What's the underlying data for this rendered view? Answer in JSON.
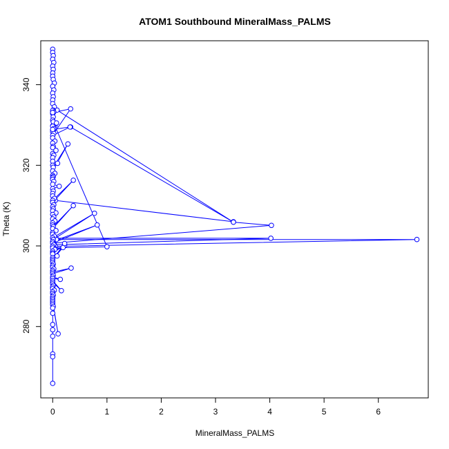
{
  "chart_data": {
    "type": "scatter",
    "title": "ATOM1 Southbound MineralMass_PALMS",
    "xlabel": "MineralMass_PALMS",
    "ylabel": "Theta (K)",
    "xlim": [
      -0.22,
      6.92
    ],
    "ylim": [
      262.3,
      350.9
    ],
    "x_ticks": [
      0,
      1,
      2,
      3,
      4,
      5,
      6
    ],
    "y_ticks": [
      280,
      300,
      320,
      340
    ],
    "grid": false,
    "line_style": "points connected by lines",
    "series_color": "#0000ff",
    "series": [
      {
        "x": [
          0.0,
          0.0,
          0.01,
          0.0,
          0.02,
          0.0,
          0.01,
          0.0,
          0.0,
          0.01,
          0.03,
          0.0,
          0.02,
          0.0,
          0.01,
          0.0,
          0.0,
          0.03,
          0.01,
          0.0,
          0.02,
          0.0,
          0.01,
          0.0,
          0.06,
          0.0,
          0.01,
          0.0,
          0.0,
          0.02,
          0.33,
          0.0,
          0.01,
          0.07,
          0.0,
          0.02,
          0.0,
          0.32,
          0.0,
          0.0,
          0.04,
          0.0,
          0.01,
          0.0,
          0.06,
          0.0,
          0.02,
          0.0,
          0.0,
          0.09,
          0.0,
          0.01,
          0.28,
          0.0,
          0.04,
          0.0,
          0.01,
          0.0,
          0.0,
          0.02,
          0.0,
          0.12,
          0.0,
          0.01,
          0.0,
          0.0,
          0.03,
          0.0,
          0.38,
          0.0,
          0.02,
          0.0,
          0.01,
          0.0,
          0.06,
          0.0,
          0.02,
          0.0,
          0.04,
          0.0,
          0.0,
          0.01,
          0.38,
          0.0,
          0.06,
          0.0,
          0.0,
          0.03,
          0.0,
          0.77,
          0.01,
          0.0,
          0.82,
          0.0,
          0.02,
          0.0,
          0.0,
          0.04,
          0.0,
          0.22,
          0.0,
          0.0,
          0.08,
          0.0,
          0.19,
          0.0,
          0.22,
          0.0,
          0.0,
          0.01,
          0.0,
          0.0,
          0.02,
          0.0,
          0.0,
          0.34,
          0.0,
          0.01,
          0.0,
          0.14,
          0.0,
          0.0,
          0.16,
          0.0,
          0.0,
          0.01,
          0.0,
          0.0,
          0.03,
          0.0,
          0.0,
          0.01,
          0.0,
          0.0,
          0.0,
          0.0,
          0.1,
          0.0,
          0.0,
          0.01,
          0.0,
          0.0,
          0.0,
          0.0,
          0.0,
          0.0,
          0.0,
          0.0
        ],
        "y": [
          348.8,
          348.0,
          347.2,
          346.3,
          345.5,
          344.6,
          343.8,
          342.9,
          342.1,
          341.3,
          340.4,
          339.6,
          338.7,
          337.9,
          337.0,
          336.2,
          335.3,
          334.5,
          333.7,
          333.6,
          333.2,
          332.8,
          332.0,
          331.2,
          330.4,
          329.8,
          329.5,
          328.7,
          328.3,
          327.9,
          334.0,
          333.1,
          330.8,
          330.5,
          329.7,
          329.1,
          328.9,
          329.5,
          327.4,
          326.8,
          326.0,
          325.5,
          324.7,
          324.4,
          323.7,
          322.9,
          322.5,
          321.9,
          321.0,
          320.5,
          320.0,
          319.5,
          325.3,
          318.6,
          318.0,
          317.5,
          317.2,
          316.9,
          316.5,
          316.0,
          315.3,
          314.8,
          314.2,
          313.6,
          313.0,
          312.4,
          311.8,
          311.3,
          316.3,
          310.8,
          310.2,
          309.7,
          309.2,
          308.7,
          308.2,
          307.8,
          307.2,
          306.7,
          306.2,
          305.7,
          305.2,
          304.8,
          310.0,
          304.3,
          303.8,
          303.3,
          302.9,
          302.4,
          302.0,
          308.1,
          301.6,
          301.1,
          305.2,
          300.7,
          300.3,
          299.9,
          299.5,
          299.1,
          298.7,
          300.1,
          298.3,
          298.0,
          297.5,
          297.1,
          299.6,
          296.7,
          300.6,
          296.3,
          295.9,
          295.5,
          295.1,
          294.7,
          294.3,
          293.9,
          293.5,
          294.5,
          293.1,
          292.7,
          292.3,
          291.7,
          291.9,
          291.4,
          288.9,
          291.0,
          290.6,
          290.2,
          289.8,
          289.4,
          289.0,
          288.6,
          288.2,
          287.8,
          287.4,
          287.0,
          286.6,
          286.2,
          278.2,
          285.8,
          285.4,
          285.0,
          284.6,
          283.3,
          280.5,
          279.2,
          277.6,
          273.2,
          272.5,
          265.9
        ],
        "connections": [
          {
            "x": [
              0.08,
              3.33,
              4.03,
              0.02
            ],
            "y": [
              333.7,
              305.9,
              305.1,
              300.7
            ]
          },
          {
            "x": [
              0.06,
              4.02,
              0.03
            ],
            "y": [
              301.9,
              301.9,
              300.3
            ]
          },
          {
            "x": [
              0.07,
              6.71,
              0.05
            ],
            "y": [
              301.6,
              301.6,
              299.9
            ]
          },
          {
            "x": [
              0.04,
              1.0,
              0.03
            ],
            "y": [
              329.8,
              299.8,
              299.5
            ]
          },
          {
            "x": [
              0.05,
              3.33
            ],
            "y": [
              311.3,
              306.0
            ]
          },
          {
            "x": [
              0.33,
              3.33
            ],
            "y": [
              329.5,
              305.9
            ]
          }
        ]
      }
    ]
  }
}
